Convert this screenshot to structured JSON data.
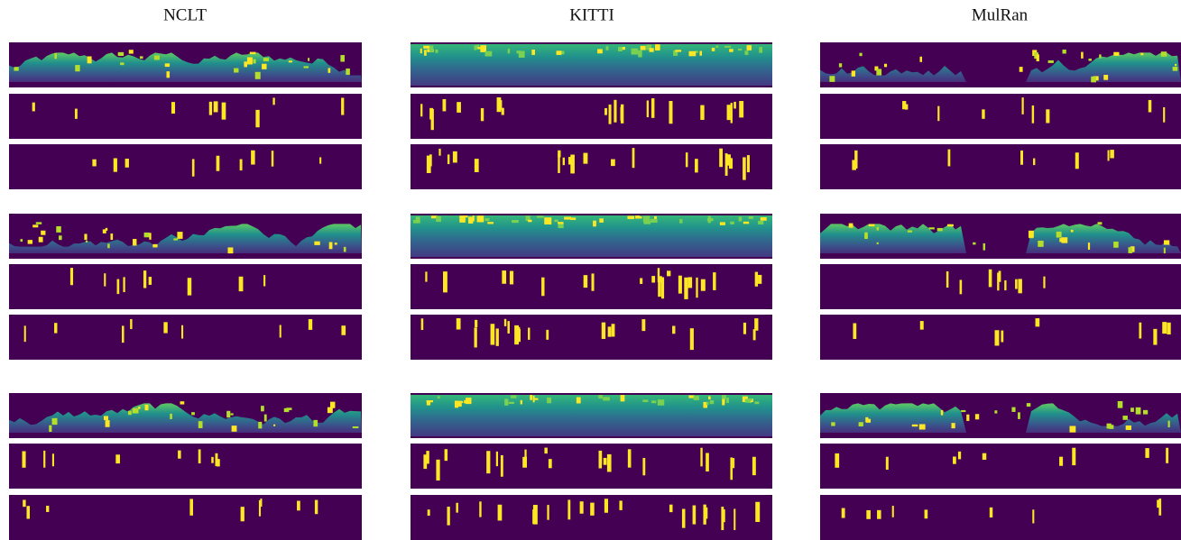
{
  "columns": [
    {
      "title": "NCLT"
    },
    {
      "title": "KITTI"
    },
    {
      "title": "MulRan"
    }
  ]
}
